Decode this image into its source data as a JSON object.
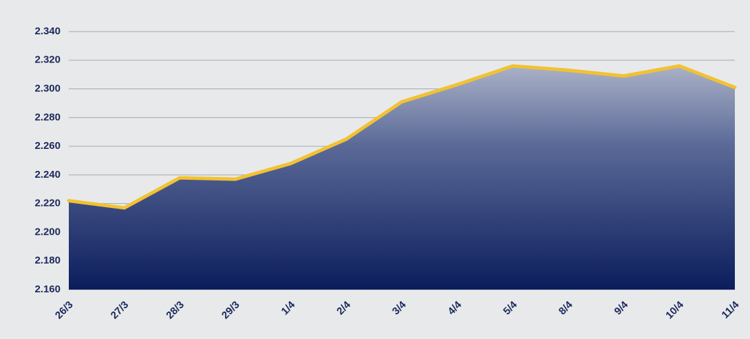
{
  "chart_data": {
    "type": "area",
    "categories": [
      "26/3",
      "27/3",
      "28/3",
      "29/3",
      "1/4",
      "2/4",
      "3/4",
      "4/4",
      "5/4",
      "8/4",
      "9/4",
      "10/4",
      "11/4"
    ],
    "series": [
      {
        "color": "#f1c232",
        "values": [
          2222,
          2217,
          2238,
          2237,
          2248,
          2265,
          2291,
          2303,
          2316,
          2313,
          2309,
          2316,
          2301
        ]
      }
    ],
    "ylim": [
      2160,
      2340
    ],
    "yticks": [
      {
        "value": 2160,
        "label": "2.160"
      },
      {
        "value": 2180,
        "label": "2.180"
      },
      {
        "value": 2200,
        "label": "2.200"
      },
      {
        "value": 2220,
        "label": "2.220"
      },
      {
        "value": 2240,
        "label": "2.240"
      },
      {
        "value": 2260,
        "label": "2.260"
      },
      {
        "value": 2280,
        "label": "2.280"
      },
      {
        "value": 2300,
        "label": "2.300"
      },
      {
        "value": 2320,
        "label": "2.320"
      },
      {
        "value": 2340,
        "label": "2.340"
      }
    ],
    "grid": true
  }
}
